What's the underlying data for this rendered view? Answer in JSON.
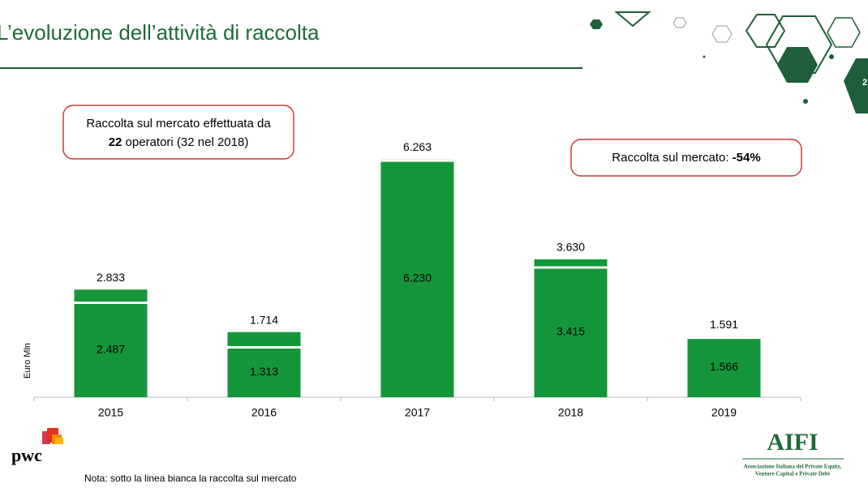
{
  "page_number": "2",
  "chart_data": {
    "type": "bar",
    "title": "L’evoluzione dell’attività di raccolta",
    "y_label": "Euro Mln",
    "categories": [
      "2015",
      "2016",
      "2017",
      "2018",
      "2019"
    ],
    "series": [
      {
        "color": "#15963b",
        "values": [
          2833,
          1714,
          6263,
          3630,
          1591
        ],
        "value_labels": [
          "2.833",
          "1.714",
          "6.263",
          "3.630",
          "1.591"
        ]
      },
      {
        "color": "#ffffff",
        "values": [
          2487,
          1313,
          6230,
          3415,
          1566
        ],
        "value_labels": [
          "2.487",
          "1.313",
          "6.230",
          "3.415",
          "1.566"
        ]
      }
    ],
    "ylim": [
      0,
      7000
    ],
    "annotations": [
      {
        "text_before": "Raccolta sul mercato effettuata da",
        "bold": "22",
        "text_after": "operatori (32 nel 2018)"
      },
      {
        "text_before": "Raccolta sul mercato:",
        "bold": "-54%"
      }
    ],
    "note": "Nota: sotto la linea bianca la raccolta sul mercato"
  },
  "logos": {
    "pwc": "pwc",
    "aifi": "AIFI",
    "aifi_line1": "Associazione Italiana del Private Equity,",
    "aifi_line2": "Venture Capital e Private Debt"
  }
}
